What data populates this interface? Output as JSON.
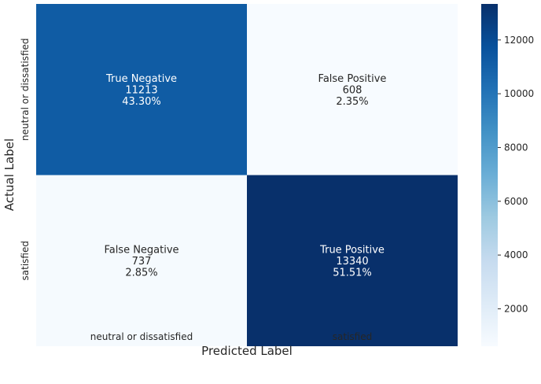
{
  "chart_data": {
    "type": "heatmap",
    "title": "",
    "xlabel": "Predicted Label",
    "ylabel": "Actual Label",
    "x_categories": [
      "neutral or dissatisfied",
      "satisfied"
    ],
    "y_categories": [
      "neutral or dissatisfied",
      "satisfied"
    ],
    "cells": [
      {
        "row": 0,
        "col": 0,
        "name": "True Negative",
        "value": 11213,
        "percent": "43.30%",
        "value_text": "11213"
      },
      {
        "row": 0,
        "col": 1,
        "name": "False Positive",
        "value": 608,
        "percent": "2.35%",
        "value_text": "608"
      },
      {
        "row": 1,
        "col": 0,
        "name": "False Negative",
        "value": 737,
        "percent": "2.85%",
        "value_text": "737"
      },
      {
        "row": 1,
        "col": 1,
        "name": "True Positive",
        "value": 13340,
        "percent": "51.51%",
        "value_text": "13340"
      }
    ],
    "colormap": "Blues",
    "colorbar": {
      "vmin": 608,
      "vmax": 13340,
      "ticks": [
        2000,
        4000,
        6000,
        8000,
        10000,
        12000
      ],
      "tick_labels": [
        "2000",
        "4000",
        "6000",
        "8000",
        "10000",
        "12000"
      ]
    }
  }
}
